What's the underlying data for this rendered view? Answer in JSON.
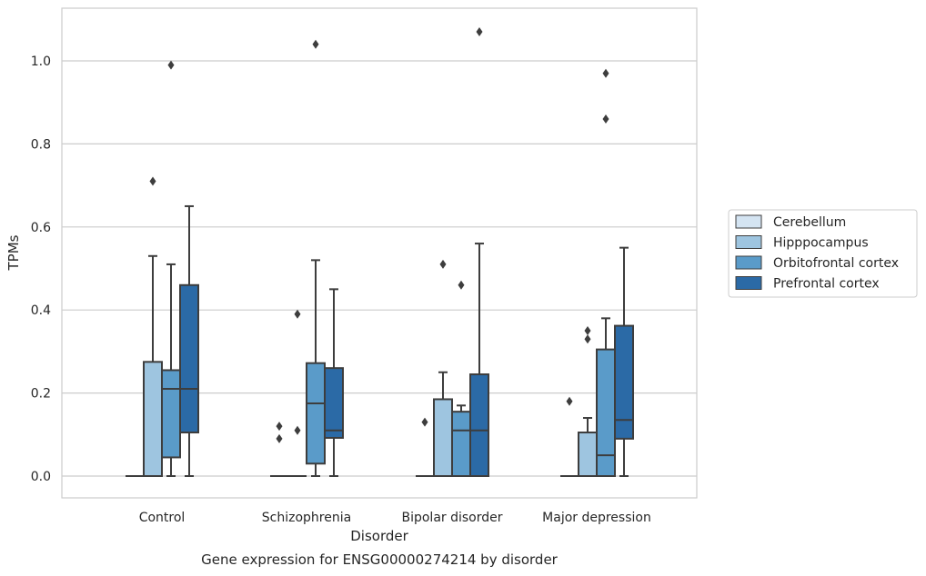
{
  "chart_data": {
    "type": "box",
    "title": "",
    "caption": "Gene expression for ENSG00000274214 by disorder",
    "xlabel": "Disorder",
    "ylabel": "TPMs",
    "ylim": [
      -0.05,
      1.13
    ],
    "yticks": [
      0.0,
      0.2,
      0.4,
      0.6,
      0.8,
      1.0
    ],
    "ytick_labels": [
      "0.0",
      "0.2",
      "0.4",
      "0.6",
      "0.8",
      "1.0"
    ],
    "grid": "horizontal",
    "legend_position": "right",
    "categories": [
      "Control",
      "Schizophrenia",
      "Bipolar disorder",
      "Major depression"
    ],
    "series": [
      {
        "name": "Cerebellum",
        "color": "#d4e4f2",
        "boxes": [
          {
            "q1": 0.0,
            "median": 0.0,
            "q3": 0.0,
            "whisker_low": 0.0,
            "whisker_high": 0.0,
            "outliers": []
          },
          {
            "q1": 0.0,
            "median": 0.0,
            "q3": 0.0,
            "whisker_low": 0.0,
            "whisker_high": 0.0,
            "outliers": [
              0.12,
              0.09
            ]
          },
          {
            "q1": 0.0,
            "median": 0.0,
            "q3": 0.0,
            "whisker_low": 0.0,
            "whisker_high": 0.0,
            "outliers": [
              0.13
            ]
          },
          {
            "q1": 0.0,
            "median": 0.0,
            "q3": 0.0,
            "whisker_low": 0.0,
            "whisker_high": 0.0,
            "outliers": [
              0.18
            ]
          }
        ]
      },
      {
        "name": "Hipppocampus",
        "color": "#9ec5e0",
        "boxes": [
          {
            "q1": 0.0,
            "median": 0.0,
            "q3": 0.275,
            "whisker_low": 0.0,
            "whisker_high": 0.53,
            "outliers": [
              0.71
            ]
          },
          {
            "q1": 0.0,
            "median": 0.0,
            "q3": 0.0,
            "whisker_low": 0.0,
            "whisker_high": 0.0,
            "outliers": [
              0.11,
              0.39
            ]
          },
          {
            "q1": 0.0,
            "median": 0.0,
            "q3": 0.185,
            "whisker_low": 0.0,
            "whisker_high": 0.25,
            "outliers": [
              0.51
            ]
          },
          {
            "q1": 0.0,
            "median": 0.0,
            "q3": 0.105,
            "whisker_low": 0.0,
            "whisker_high": 0.14,
            "outliers": [
              0.33,
              0.35
            ]
          }
        ]
      },
      {
        "name": "Orbitofrontal cortex",
        "color": "#5a9bc9",
        "boxes": [
          {
            "q1": 0.045,
            "median": 0.21,
            "q3": 0.255,
            "whisker_low": 0.0,
            "whisker_high": 0.51,
            "outliers": [
              0.99
            ]
          },
          {
            "q1": 0.03,
            "median": 0.175,
            "q3": 0.272,
            "whisker_low": 0.0,
            "whisker_high": 0.52,
            "outliers": [
              1.04
            ]
          },
          {
            "q1": 0.0,
            "median": 0.11,
            "q3": 0.155,
            "whisker_low": 0.0,
            "whisker_high": 0.17,
            "outliers": [
              0.46
            ]
          },
          {
            "q1": 0.0,
            "median": 0.05,
            "q3": 0.305,
            "whisker_low": 0.0,
            "whisker_high": 0.38,
            "outliers": [
              0.86,
              0.97
            ]
          }
        ]
      },
      {
        "name": "Prefrontal cortex",
        "color": "#2b6aa6",
        "boxes": [
          {
            "q1": 0.105,
            "median": 0.21,
            "q3": 0.46,
            "whisker_low": 0.0,
            "whisker_high": 0.65,
            "outliers": []
          },
          {
            "q1": 0.092,
            "median": 0.11,
            "q3": 0.26,
            "whisker_low": 0.0,
            "whisker_high": 0.45,
            "outliers": []
          },
          {
            "q1": 0.0,
            "median": 0.11,
            "q3": 0.245,
            "whisker_low": 0.0,
            "whisker_high": 0.56,
            "outliers": [
              1.07
            ]
          },
          {
            "q1": 0.09,
            "median": 0.135,
            "q3": 0.362,
            "whisker_low": 0.0,
            "whisker_high": 0.55,
            "outliers": []
          }
        ]
      }
    ]
  }
}
